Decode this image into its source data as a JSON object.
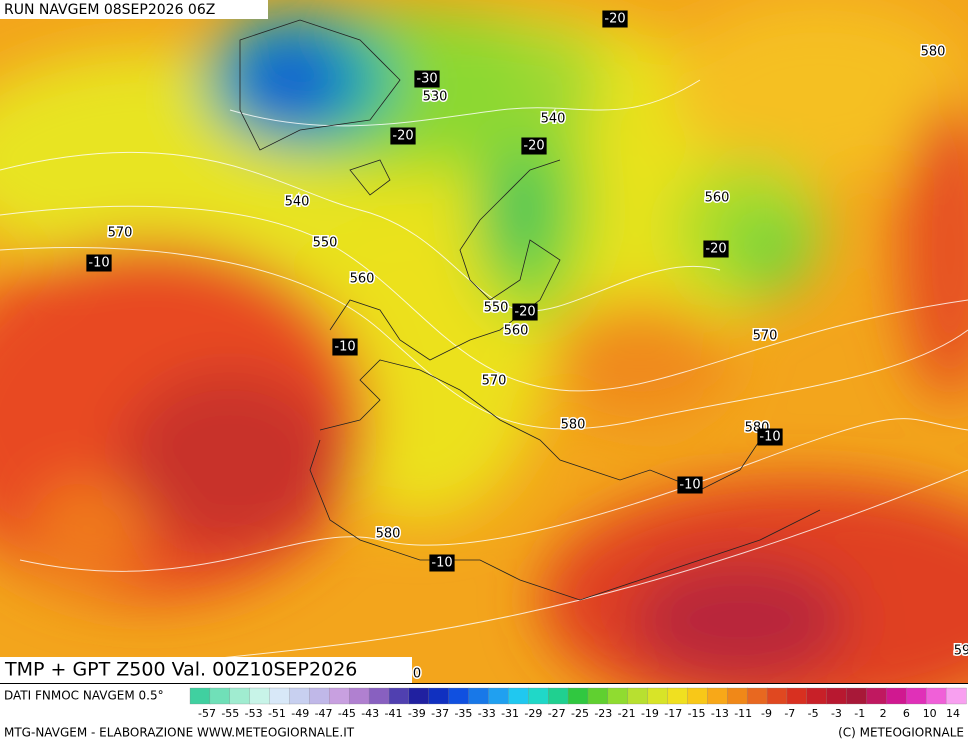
{
  "header": {
    "run": "RUN NAVGEM 08SEP2026 06Z"
  },
  "map": {
    "title": "TMP + GPT Z500 Val. 00Z10SEP2026",
    "height_labels": [
      580,
      530,
      540,
      540,
      570,
      550,
      560,
      560,
      550,
      560,
      570,
      570,
      580,
      580,
      580,
      59,
      0
    ],
    "temp_labels": [
      -20,
      -30,
      -20,
      -20,
      -20,
      -10,
      -20,
      -10,
      -10,
      -10,
      -10
    ]
  },
  "legend": {
    "source": "DATI FNMOC NAVGEM 0.5°",
    "scale": [
      -57,
      -55,
      -53,
      -51,
      -49,
      -47,
      -45,
      -43,
      -41,
      -39,
      -37,
      -35,
      -33,
      -31,
      -29,
      -27,
      -25,
      -23,
      -21,
      -19,
      -17,
      -15,
      -13,
      -11,
      -9,
      -7,
      -5,
      -3,
      -1,
      2,
      6,
      10,
      14
    ]
  },
  "footer": {
    "left": "MTG-NAVGEM - ELABORAZIONE WWW.METEOGIORNALE.IT",
    "right": "(C) METEOGIORNALE"
  }
}
